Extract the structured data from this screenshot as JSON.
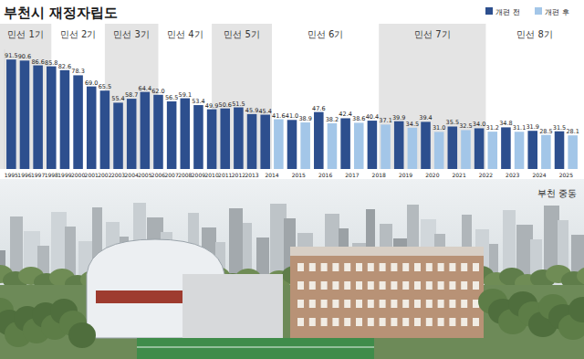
{
  "chart_data": {
    "type": "bar",
    "title": "부천시 재정자립도",
    "categories": [
      "1995",
      "1996",
      "1997",
      "1998",
      "1999",
      "2000",
      "2001",
      "2002",
      "2003",
      "2004",
      "2005",
      "2006",
      "2007",
      "2008",
      "2009",
      "2010",
      "2011",
      "2012",
      "2013",
      "2014",
      "2015",
      "2016",
      "2017",
      "2018",
      "2019",
      "2020",
      "2021",
      "2022",
      "2023",
      "2024",
      "2025"
    ],
    "series": [
      {
        "name": "개편 전",
        "color": "#2d4f8e",
        "values": [
          91.5,
          90.6,
          86.6,
          85.8,
          82.6,
          78.3,
          69.0,
          65.5,
          55.4,
          58.7,
          64.4,
          62.0,
          56.5,
          59.1,
          53.4,
          49.9,
          50.6,
          51.5,
          45.9,
          45.4,
          41.0,
          47.6,
          42.4,
          40.4,
          39.9,
          39.4,
          35.5,
          34.0,
          34.8,
          31.9,
          31.5
        ],
        "value_labels": [
          "91.5",
          "90.6",
          "86.6",
          "85.8",
          "82.6",
          "78.3",
          "69.0",
          "65.5",
          "55.4",
          "58.7",
          "64.4",
          "62.0",
          "56.5",
          "59.1",
          "53.4",
          "49.9",
          "50.6",
          "51.5",
          "45.9",
          "45.4",
          "41.0",
          "47.6",
          "42.4",
          "40.4",
          "39.9",
          "39.4",
          "35.5",
          "34.0",
          "34.8",
          "31.9",
          "31.5"
        ]
      },
      {
        "name": "개편 후",
        "color": "#a3c6e8",
        "values": [
          null,
          null,
          null,
          null,
          null,
          null,
          null,
          null,
          null,
          null,
          null,
          null,
          null,
          null,
          null,
          null,
          null,
          null,
          null,
          41.6,
          38.9,
          38.2,
          38.6,
          37.1,
          34.5,
          31.0,
          32.5,
          31.2,
          31.1,
          28.5,
          28.1
        ],
        "value_labels": [
          null,
          null,
          null,
          null,
          null,
          null,
          null,
          null,
          null,
          null,
          null,
          null,
          null,
          null,
          null,
          null,
          null,
          null,
          null,
          "41.6",
          "38.9",
          "38.2",
          "38.6",
          "37.1",
          "34.5",
          "31.0",
          "32.5",
          "31.2",
          "31.1",
          "28.5",
          "28.1"
        ]
      }
    ],
    "ylim": [
      0,
      100
    ],
    "tick_labels": "x",
    "data_labels": true,
    "legend": "top-right",
    "annotations": [
      {
        "text": "민선 1기",
        "start": "1995",
        "end": "1998"
      },
      {
        "text": "민선 2기",
        "start": "1998",
        "end": "2002"
      },
      {
        "text": "민선 3기",
        "start": "2002",
        "end": "2006"
      },
      {
        "text": "민선 4기",
        "start": "2006",
        "end": "2010"
      },
      {
        "text": "민선 5기",
        "start": "2010",
        "end": "2014"
      },
      {
        "text": "민선 6기",
        "start": "2014",
        "end": "2018"
      },
      {
        "text": "민선 7기",
        "start": "2018",
        "end": "2022"
      },
      {
        "text": "민선 8기",
        "start": "2022",
        "end": "2025"
      },
      {
        "text": "부천 중동"
      }
    ]
  }
}
